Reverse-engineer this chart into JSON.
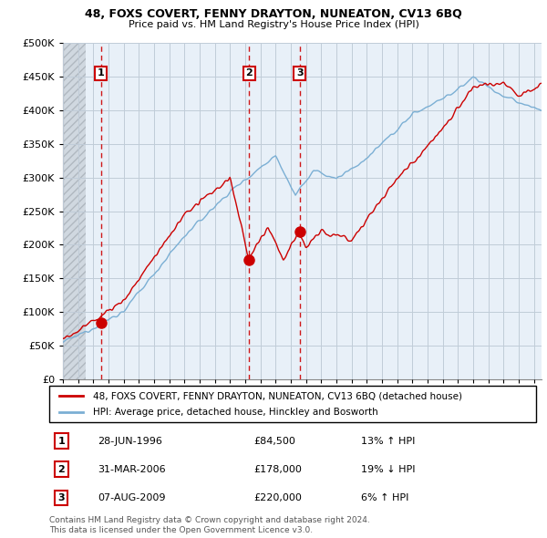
{
  "title1": "48, FOXS COVERT, FENNY DRAYTON, NUNEATON, CV13 6BQ",
  "title2": "Price paid vs. HM Land Registry's House Price Index (HPI)",
  "ylim": [
    0,
    500000
  ],
  "yticks": [
    0,
    50000,
    100000,
    150000,
    200000,
    250000,
    300000,
    350000,
    400000,
    450000,
    500000
  ],
  "xlim_start": 1994.0,
  "xlim_end": 2025.5,
  "sale_color": "#cc0000",
  "hpi_color": "#7bafd4",
  "bg_main": "#e8f0f8",
  "bg_hatch": "#d8d8d8",
  "sales": [
    {
      "year": 1996.49,
      "price": 84500,
      "label": "1"
    },
    {
      "year": 2006.25,
      "price": 178000,
      "label": "2"
    },
    {
      "year": 2009.59,
      "price": 220000,
      "label": "3"
    }
  ],
  "vline_years": [
    1996.49,
    2006.25,
    2009.59
  ],
  "legend_sale_label": "48, FOXS COVERT, FENNY DRAYTON, NUNEATON, CV13 6BQ (detached house)",
  "legend_hpi_label": "HPI: Average price, detached house, Hinckley and Bosworth",
  "table_rows": [
    {
      "num": "1",
      "date": "28-JUN-1996",
      "price": "£84,500",
      "change": "13% ↑ HPI"
    },
    {
      "num": "2",
      "date": "31-MAR-2006",
      "price": "£178,000",
      "change": "19% ↓ HPI"
    },
    {
      "num": "3",
      "date": "07-AUG-2009",
      "price": "£220,000",
      "change": "6% ↑ HPI"
    }
  ],
  "footnote": "Contains HM Land Registry data © Crown copyright and database right 2024.\nThis data is licensed under the Open Government Licence v3.0.",
  "grid_color": "#c0ccd8"
}
